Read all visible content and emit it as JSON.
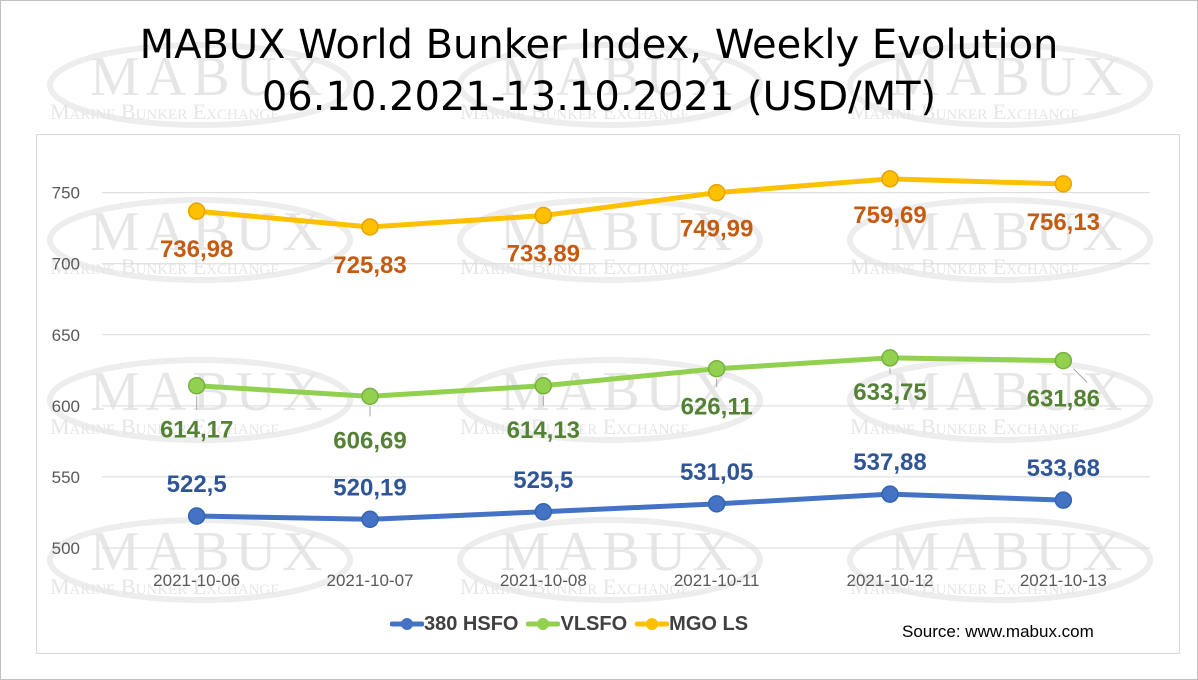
{
  "title_line1": "MABUX World Bunker Index, Weekly Evolution",
  "title_line2": "06.10.2021-13.10.2021 (USD/MT)",
  "source": "Source: www.mabux.com",
  "watermark": {
    "brand": "MABUX",
    "tagline": "Marine Bunker Exchange"
  },
  "chart_data": {
    "type": "line",
    "categories": [
      "2021-10-06",
      "2021-10-07",
      "2021-10-08",
      "2021-10-11",
      "2021-10-12",
      "2021-10-13"
    ],
    "ylim": [
      500,
      750
    ],
    "ylim_axis_max": 780,
    "yticks": [
      500,
      550,
      600,
      650,
      700,
      750
    ],
    "grid": true,
    "legend_position": "bottom",
    "series": [
      {
        "name": "380 HSFO",
        "color": "#4472c4",
        "label_color": "#2f5597",
        "values": [
          522.5,
          520.19,
          525.5,
          531.05,
          537.88,
          533.68
        ],
        "labels": [
          "522,5",
          "520,19",
          "525,5",
          "531,05",
          "537,88",
          "533,68"
        ]
      },
      {
        "name": "VLSFO",
        "color": "#92d050",
        "label_color": "#548235",
        "values": [
          614.17,
          606.69,
          614.13,
          626.11,
          633.75,
          631.86
        ],
        "labels": [
          "614,17",
          "606,69",
          "614,13",
          "626,11",
          "633,75",
          "631,86"
        ]
      },
      {
        "name": "MGO LS",
        "color": "#ffc000",
        "label_color": "#c55a11",
        "values": [
          736.98,
          725.83,
          733.89,
          749.99,
          759.69,
          756.13
        ],
        "labels": [
          "736,98",
          "725,83",
          "733,89",
          "749,99",
          "759,69",
          "756,13"
        ]
      }
    ]
  }
}
